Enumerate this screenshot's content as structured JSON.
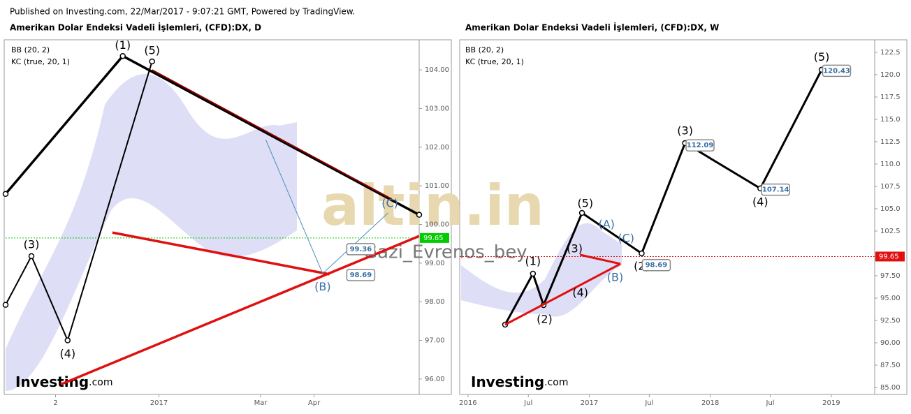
{
  "header": "Published on Investing.com, 22/Mar/2017 - 9:07:21 GMT, Powered by TradingView.",
  "watermark": "altin.in",
  "user": "Gazi_Evrenos_bey",
  "logo": "Investing",
  "logo_suffix": ".com",
  "chart_data": [
    {
      "type": "line",
      "title": "Amerikan Dolar Endeksi Vadeli İşlemleri, (CFD):DX, D",
      "indicators": [
        "BB (20, 2)",
        "KC (true, 20, 1)"
      ],
      "xlim": [
        "2016-10-04",
        "2017-06-01"
      ],
      "xticks": [
        {
          "value": "2016-11-02",
          "label": "2"
        },
        {
          "value": "2017-01-01",
          "label": "2017"
        },
        {
          "value": "2017-03-01",
          "label": "Mar"
        },
        {
          "value": "2017-04-01",
          "label": "Apr"
        }
      ],
      "ylim": [
        95.6,
        104.78
      ],
      "yticks": [
        {
          "value": 96,
          "label": "96.00"
        },
        {
          "value": 97,
          "label": "97.00"
        },
        {
          "value": 98,
          "label": "98.00"
        },
        {
          "value": 99,
          "label": "99.00"
        },
        {
          "value": 100,
          "label": "100.00"
        },
        {
          "value": 101,
          "label": "101.00"
        },
        {
          "value": 102,
          "label": "102.00"
        },
        {
          "value": 103,
          "label": "103.00"
        },
        {
          "value": 104,
          "label": "104.00"
        }
      ],
      "series": [
        {
          "color": "#000000",
          "width": 2,
          "x": [
            "2016-10-04",
            "2016-10-19",
            "2016-11-09",
            "2016-12-28"
          ],
          "values": [
            97.92,
            99.18,
            97.0,
            104.22
          ]
        },
        {
          "color": "#000000",
          "width": 3.5,
          "x": [
            "2016-10-04",
            "2016-12-11",
            "2017-06-01"
          ],
          "values": [
            100.79,
            104.36,
            100.25
          ]
        },
        {
          "color": "#e01010",
          "width": 3.5,
          "x": [
            "2016-12-05",
            "2017-04-10"
          ],
          "values": [
            99.79,
            98.71
          ]
        },
        {
          "color": "#e01010",
          "width": 3.5,
          "x": [
            "2016-11-05",
            "2017-06-01"
          ],
          "values": [
            95.86,
            99.7
          ]
        },
        {
          "color": "#8b0000",
          "width": 2,
          "x": [
            "2016-12-28",
            "2017-05-16"
          ],
          "values": [
            104.0,
            100.66
          ]
        },
        {
          "color": "#4a90b8",
          "width": 1,
          "x": [
            "2017-03-04",
            "2017-04-06",
            "2017-05-14"
          ],
          "values": [
            102.19,
            98.73,
            100.3
          ]
        }
      ],
      "annotations": [
        {
          "text": "(1)",
          "x": "2016-12-11",
          "y": 104.63,
          "color": "#000000"
        },
        {
          "text": "(5)",
          "x": "2016-12-28",
          "y": 104.49,
          "color": "#000000"
        },
        {
          "text": "(3)",
          "x": "2016-10-19",
          "y": 99.47,
          "color": "#000000"
        },
        {
          "text": "(4)",
          "x": "2016-11-09",
          "y": 96.64,
          "color": "#000000"
        },
        {
          "text": "(C)",
          "x": "2017-05-15",
          "y": 100.53,
          "color": "#3a6ea5"
        },
        {
          "text": "(B)",
          "x": "2017-04-06",
          "y": 98.37,
          "color": "#3a6ea5"
        }
      ],
      "price_labels": [
        {
          "x": "2017-04-20",
          "value": 99.36
        },
        {
          "x": "2017-04-20",
          "value": 98.69
        }
      ],
      "last_price": {
        "value": 99.65,
        "color": "#00cc00"
      }
    },
    {
      "type": "line",
      "title": "Amerikan Dolar Endeksi Vadeli İşlemleri, (CFD):DX, W",
      "indicators": [
        "BB (20, 2)",
        "KC (true, 20, 1)"
      ],
      "xlim": [
        "2015-12-07",
        "2019-05-12"
      ],
      "xticks": [
        {
          "value": "2016-01-01",
          "label": "2016"
        },
        {
          "value": "2016-07-01",
          "label": "Jul"
        },
        {
          "value": "2017-01-01",
          "label": "2017"
        },
        {
          "value": "2017-07-01",
          "label": "Jul"
        },
        {
          "value": "2018-01-01",
          "label": "2018"
        },
        {
          "value": "2018-07-01",
          "label": "Jul"
        },
        {
          "value": "2019-01-01",
          "label": "2019"
        }
      ],
      "ylim": [
        84.22,
        123.9
      ],
      "yticks": [
        {
          "value": 85,
          "label": "85.00"
        },
        {
          "value": 87.5,
          "label": "87.50"
        },
        {
          "value": 90,
          "label": "90.00"
        },
        {
          "value": 92.5,
          "label": "92.50"
        },
        {
          "value": 95,
          "label": "95.00"
        },
        {
          "value": 97.5,
          "label": "97.50"
        },
        {
          "value": 102.5,
          "label": "102.5"
        },
        {
          "value": 105,
          "label": "105.0"
        },
        {
          "value": 107.5,
          "label": "107.5"
        },
        {
          "value": 110,
          "label": "110.0"
        },
        {
          "value": 112.5,
          "label": "112.5"
        },
        {
          "value": 115,
          "label": "115.0"
        },
        {
          "value": 117.5,
          "label": "117.5"
        },
        {
          "value": 120,
          "label": "120.0"
        },
        122.5
      ],
      "series": [
        {
          "color": "#000000",
          "width": 3,
          "x": [
            "2016-04-22",
            "2016-07-15",
            "2016-08-16",
            "2016-12-10",
            "2017-06-08",
            "2017-10-17",
            "2018-06-01",
            "2018-12-03"
          ],
          "values": [
            92.03,
            97.73,
            94.22,
            104.53,
            100.0,
            112.34,
            107.27,
            120.55
          ]
        },
        {
          "color": "#e01010",
          "width": 3,
          "x": [
            "2016-04-22",
            "2017-04-05"
          ],
          "values": [
            92.03,
            98.83
          ]
        },
        {
          "color": "#e01010",
          "width": 3,
          "x": [
            "2016-12-04",
            "2017-04-05"
          ],
          "values": [
            99.84,
            98.83
          ]
        }
      ],
      "annotations": [
        {
          "text": "(1)",
          "x": "2016-07-15",
          "y": 99.06,
          "color": "#000000"
        },
        {
          "text": "(2)",
          "x": "2016-08-19",
          "y": 92.58,
          "color": "#000000"
        },
        {
          "text": "(3)",
          "x": "2016-11-18",
          "y": 100.47,
          "color": "#000000"
        },
        {
          "text": "(4)",
          "x": "2016-12-05",
          "y": 95.55,
          "color": "#000000"
        },
        {
          "text": "(5)",
          "x": "2016-12-20",
          "y": 105.55,
          "color": "#000000"
        },
        {
          "text": "(A)",
          "x": "2017-02-22",
          "y": 103.2,
          "color": "#3a6ea5"
        },
        {
          "text": "(B)",
          "x": "2017-03-20",
          "y": 97.27,
          "color": "#3a6ea5"
        },
        {
          "text": "(C)",
          "x": "2017-04-22",
          "y": 101.64,
          "color": "#3a6ea5"
        },
        {
          "text": "(2)",
          "x": "2017-06-08",
          "y": 98.52,
          "color": "#000000"
        },
        {
          "text": "(3)",
          "x": "2017-10-17",
          "y": 113.67,
          "color": "#000000"
        },
        {
          "text": "(4)",
          "x": "2018-06-01",
          "y": 105.7,
          "color": "#000000"
        },
        {
          "text": "(5)",
          "x": "2018-12-03",
          "y": 121.9,
          "color": "#000000"
        }
      ],
      "price_labels": [
        {
          "x": "2017-10-20",
          "value": 112.09
        },
        {
          "x": "2018-06-05",
          "value": 107.14
        },
        {
          "x": "2018-12-06",
          "value": 120.43
        },
        {
          "x": "2017-06-10",
          "value": 98.69
        }
      ],
      "last_price": {
        "value": 99.65,
        "color": "#e01010"
      }
    }
  ]
}
